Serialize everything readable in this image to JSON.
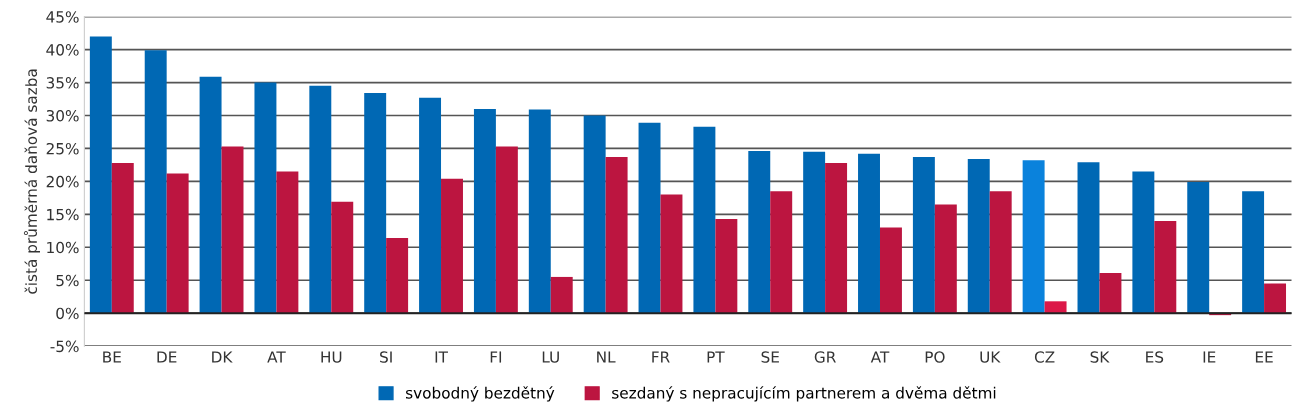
{
  "chart_data": {
    "type": "bar",
    "ylabel": "čistá průměrná daňová sazba",
    "categories": [
      "BE",
      "DE",
      "DK",
      "AT",
      "HU",
      "SI",
      "IT",
      "FI",
      "LU",
      "NL",
      "FR",
      "PT",
      "SE",
      "GR",
      "AT",
      "PO",
      "UK",
      "CZ",
      "SK",
      "ES",
      "IE",
      "EE"
    ],
    "series": [
      {
        "name": "svobodný bezdětný",
        "color": "#0068b4",
        "colors": [
          "#0068b4",
          "#0068b4",
          "#0068b4",
          "#0068b4",
          "#0068b4",
          "#0068b4",
          "#0068b4",
          "#0068b4",
          "#0068b4",
          "#0068b4",
          "#0068b4",
          "#0068b4",
          "#0068b4",
          "#0068b4",
          "#0068b4",
          "#0068b4",
          "#0068b4",
          "#0a82dc",
          "#0068b4",
          "#0068b4",
          "#0068b4",
          "#0068b4"
        ],
        "values": [
          42.0,
          39.9,
          35.9,
          35.0,
          34.5,
          33.4,
          32.7,
          31.0,
          30.9,
          30.0,
          28.9,
          28.3,
          24.6,
          24.5,
          24.2,
          23.7,
          23.4,
          23.2,
          22.9,
          21.5,
          19.9,
          18.5
        ]
      },
      {
        "name": "sezdaný s nepracujícím partnerem a dvěma dětmi",
        "color": "#bc1540",
        "colors": [
          "#bc1540",
          "#bc1540",
          "#bc1540",
          "#bc1540",
          "#bc1540",
          "#bc1540",
          "#bc1540",
          "#bc1540",
          "#bc1540",
          "#bc1540",
          "#bc1540",
          "#bc1540",
          "#bc1540",
          "#bc1540",
          "#bc1540",
          "#bc1540",
          "#bc1540",
          "#dc1848",
          "#bc1540",
          "#bc1540",
          "#bc1540",
          "#bc1540"
        ],
        "values": [
          22.8,
          21.2,
          25.3,
          21.5,
          16.9,
          11.4,
          20.4,
          25.3,
          5.5,
          23.7,
          18.0,
          14.3,
          18.5,
          22.8,
          13.0,
          16.5,
          18.5,
          1.8,
          6.1,
          14.0,
          -0.3,
          4.5
        ]
      }
    ],
    "ylim": [
      -5,
      45
    ],
    "yticks": [
      {
        "value": -5,
        "label": "-5%"
      },
      {
        "value": 0,
        "label": "0%"
      },
      {
        "value": 5,
        "label": "5%"
      },
      {
        "value": 10,
        "label": "10%"
      },
      {
        "value": 15,
        "label": "15%"
      },
      {
        "value": 20,
        "label": "20%"
      },
      {
        "value": 25,
        "label": "25%"
      },
      {
        "value": 30,
        "label": "30%"
      },
      {
        "value": 35,
        "label": "35%"
      },
      {
        "value": 40,
        "label": "40%"
      },
      {
        "value": 45,
        "label": "45%"
      }
    ],
    "grid": "y",
    "legend": "bottom"
  }
}
